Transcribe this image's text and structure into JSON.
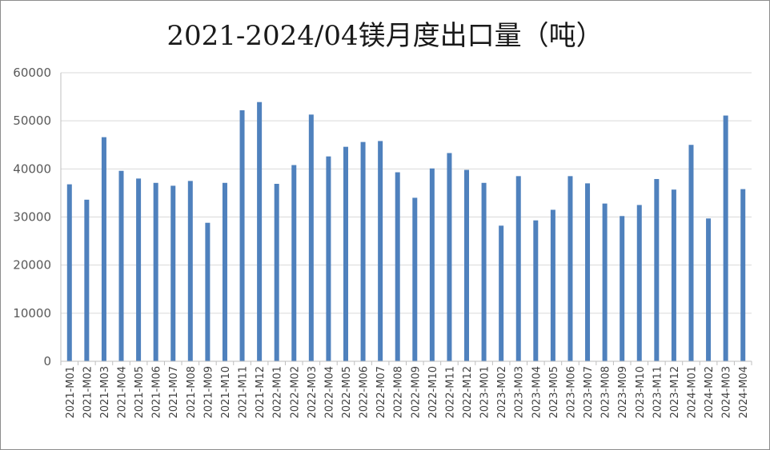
{
  "chart_data": {
    "type": "bar",
    "title": "2021-2024/04镁月度出口量（吨）",
    "categories": [
      "2021-M01",
      "2021-M02",
      "2021-M03",
      "2021-M04",
      "2021-M05",
      "2021-M06",
      "2021-M07",
      "2021-M08",
      "2021-M09",
      "2021-M10",
      "2021-M11",
      "2021-M12",
      "2022-M01",
      "2022-M02",
      "2022-M03",
      "2022-M04",
      "2022-M05",
      "2022-M06",
      "2022-M07",
      "2022-M08",
      "2022-M09",
      "2022-M10",
      "2022-M11",
      "2022-M12",
      "2023-M01",
      "2023-M02",
      "2023-M03",
      "2023-M04",
      "2023-M05",
      "2023-M06",
      "2023-M07",
      "2023-M08",
      "2023-M09",
      "2023-M10",
      "2023-M11",
      "2023-M12",
      "2024-M01",
      "2024-M02",
      "2024-M03",
      "2024-M04"
    ],
    "values": [
      36800,
      33600,
      46600,
      39600,
      38000,
      37100,
      36500,
      37500,
      28800,
      37100,
      52200,
      53900,
      36900,
      40800,
      51300,
      42600,
      44600,
      45600,
      45800,
      39300,
      34000,
      40100,
      43300,
      39800,
      37100,
      28200,
      38500,
      29300,
      31500,
      38500,
      37000,
      32800,
      30200,
      32500,
      37900,
      35700,
      45000,
      29700,
      51100,
      35800
    ],
    "ylim": [
      0,
      60000
    ],
    "yticks": [
      0,
      10000,
      20000,
      30000,
      40000,
      50000,
      60000
    ],
    "grid": true,
    "legend": "none",
    "bar_color": "#4f81bd"
  }
}
